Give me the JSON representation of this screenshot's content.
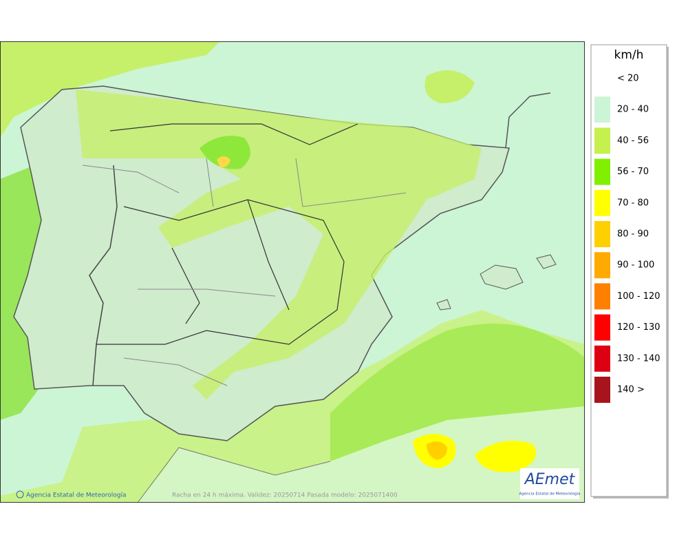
{
  "map": {
    "footer": {
      "credit": "Agencia Estatal de Meteorología",
      "caption": "Racha en 24 h máxima. Validez: 20250714 Pasada modelo: 2025071400"
    },
    "logo": {
      "name": "AEmet",
      "caption": "Agencia Estatal de Meteorología"
    }
  },
  "legend": {
    "title": "km/h",
    "items": [
      {
        "label": "< 20",
        "color": "#ffffff"
      },
      {
        "label": "20 - 40",
        "color": "#ccf5d6"
      },
      {
        "label": "40 - 56",
        "color": "#c6f04e"
      },
      {
        "label": "56 - 70",
        "color": "#80f000"
      },
      {
        "label": "70 - 80",
        "color": "#ffff00"
      },
      {
        "label": "80 - 90",
        "color": "#ffd000"
      },
      {
        "label": "90 - 100",
        "color": "#ffaa00"
      },
      {
        "label": "100 - 120",
        "color": "#ff8000"
      },
      {
        "label": "120 - 130",
        "color": "#ff0000"
      },
      {
        "label": "130 - 140",
        "color": "#dd0012"
      },
      {
        "label": "140 >",
        "color": "#a8141c"
      }
    ]
  }
}
